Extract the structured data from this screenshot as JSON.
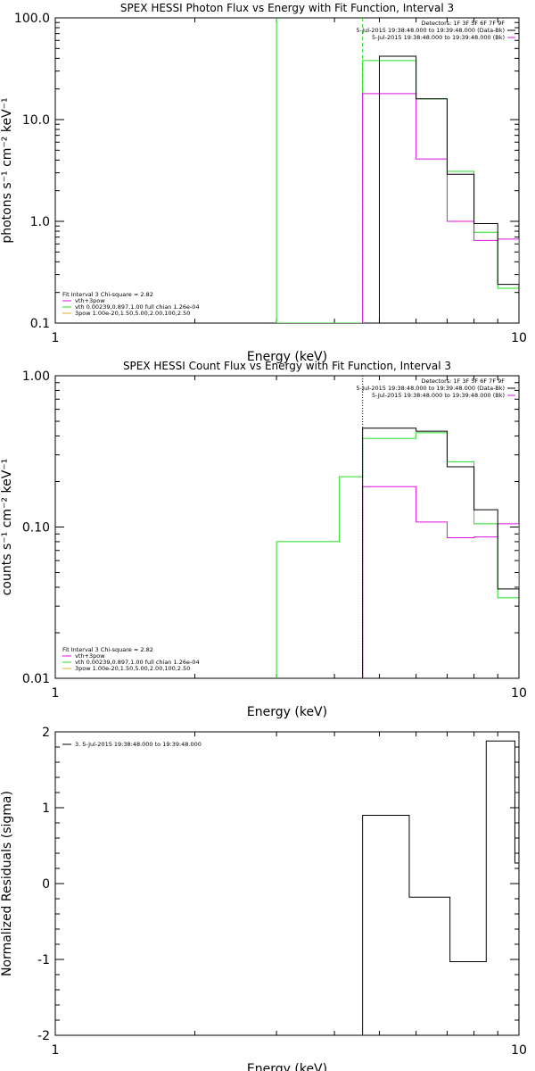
{
  "colors": {
    "black": "#000000",
    "magenta": "#e010e0",
    "green": "#22dd22",
    "orange": "#d8b020"
  },
  "chart_data": [
    {
      "type": "line",
      "title": "SPEX HESSI Photon Flux vs Energy with Fit Function, Interval 3",
      "xlabel": "Energy (keV)",
      "ylabel": "photons s⁻¹ cm⁻² keV⁻¹",
      "xscale": "log",
      "yscale": "log",
      "xlim": [
        1,
        10
      ],
      "ylim": [
        0.1,
        100
      ],
      "xticks": [
        {
          "v": 1,
          "label": "1"
        },
        {
          "v": 10,
          "label": "10"
        }
      ],
      "yticks": [
        {
          "v": 0.1,
          "label": "0.1"
        },
        {
          "v": 1,
          "label": "1.0"
        },
        {
          "v": 10,
          "label": "10.0"
        },
        {
          "v": 100,
          "label": "100.0"
        }
      ],
      "header": [
        "Detectors: 1F 3F 5F 6F 7F 9F",
        "5-Jul-2015 19:38:48.000 to 19:39:48.000 (Data-Bk)",
        "5-Jul-2015 19:38:48.000 to 19:39:48.000 (Bk)"
      ],
      "header_colors": [
        "",
        "#000000",
        "#e010e0"
      ],
      "legend_title": "Fit Interval 3   Chi-square = 2.82",
      "legend": [
        {
          "text": "vth+3pow",
          "color": "#e010e0"
        },
        {
          "text": "vth 0.00239,0.897,1.00   full chian 1.26e-04",
          "color": "#22dd22"
        },
        {
          "text": "3pow 1.00e-20,1.50,5.00,2.00,100,2.50",
          "color": "#d8b020"
        }
      ],
      "vlines": [
        {
          "x": 3.0,
          "color": "#22dd22",
          "style": "solid"
        },
        {
          "x": 4.6,
          "color": "#22dd22",
          "style": "dashed"
        }
      ],
      "series": [
        {
          "color": "#000000",
          "edges": [
            5,
            6,
            7,
            8,
            9,
            10
          ],
          "values": [
            42,
            16,
            2.9,
            0.95,
            0.24
          ]
        },
        {
          "color": "#e010e0",
          "edges": [
            4.6,
            5,
            6,
            7,
            8,
            9,
            10
          ],
          "values": [
            18,
            18,
            4.1,
            1.0,
            0.65,
            0.67
          ]
        },
        {
          "color": "#22dd22",
          "edges": [
            3,
            4,
            4.6,
            5,
            6,
            7,
            8,
            9,
            10
          ],
          "values": [
            0.1,
            0.1,
            38,
            38,
            16,
            3.1,
            0.78,
            0.22
          ]
        }
      ]
    },
    {
      "type": "line",
      "title": "SPEX HESSI Count Flux vs Energy with Fit Function, Interval 3",
      "xlabel": "Energy (keV)",
      "ylabel": "counts s⁻¹ cm⁻² keV⁻¹",
      "xscale": "log",
      "yscale": "log",
      "xlim": [
        1,
        10
      ],
      "ylim": [
        0.01,
        1
      ],
      "xticks": [
        {
          "v": 1,
          "label": "1"
        },
        {
          "v": 10,
          "label": "10"
        }
      ],
      "yticks": [
        {
          "v": 0.01,
          "label": "0.01"
        },
        {
          "v": 0.1,
          "label": "0.10"
        },
        {
          "v": 1,
          "label": "1.00"
        }
      ],
      "header": [
        "Detectors: 1F 3F 5F 6F 7F 9F",
        "5-Jul-2015 19:38:48.000 to 19:39:48.000 (Data-Bk)",
        "5-Jul-2015 19:38:48.000 to 19:39:48.000 (Bk)"
      ],
      "header_colors": [
        "",
        "#000000",
        "#e010e0"
      ],
      "legend_title": "Fit Interval 3   Chi-square = 2.82",
      "legend": [
        {
          "text": "vth+3pow",
          "color": "#e010e0"
        },
        {
          "text": "vth 0.00239,0.897,1.00   full chian 1.26e-04",
          "color": "#22dd22"
        },
        {
          "text": "3pow 1.00e-20,1.50,5.00,2.00,100,2.50",
          "color": "#d8b020"
        }
      ],
      "vlines": [
        {
          "x": 4.6,
          "color": "#000000",
          "style": "dotted"
        }
      ],
      "series": [
        {
          "color": "#000000",
          "edges": [
            4.6,
            5,
            6,
            7,
            8,
            9,
            10
          ],
          "values": [
            0.45,
            0.45,
            0.43,
            0.25,
            0.13,
            0.039
          ]
        },
        {
          "color": "#e010e0",
          "edges": [
            4.6,
            5,
            6,
            7,
            8,
            9,
            10
          ],
          "values": [
            0.185,
            0.185,
            0.108,
            0.085,
            0.086,
            0.105
          ]
        },
        {
          "color": "#22dd22",
          "edges": [
            3,
            3.6,
            4.1,
            4.6,
            5,
            6,
            7,
            8,
            9,
            10
          ],
          "values": [
            0.08,
            0.08,
            0.215,
            0.385,
            0.385,
            0.42,
            0.27,
            0.105,
            0.034
          ]
        }
      ]
    },
    {
      "type": "line",
      "title": "",
      "xlabel": "Energy (keV)",
      "ylabel": "Normalized Residuals (sigma)",
      "xscale": "log",
      "yscale": "linear",
      "xlim": [
        1,
        10
      ],
      "ylim": [
        -2,
        2
      ],
      "xticks": [
        {
          "v": 1,
          "label": "1"
        },
        {
          "v": 10,
          "label": "10"
        }
      ],
      "yticks": [
        {
          "v": -2,
          "label": "-2"
        },
        {
          "v": -1,
          "label": "-1"
        },
        {
          "v": 0,
          "label": "0"
        },
        {
          "v": 1,
          "label": "1"
        },
        {
          "v": 2,
          "label": "2"
        }
      ],
      "header": [],
      "header_colors": [],
      "legend_title": "",
      "legend": [
        {
          "text": "3.  5-Jul-2015 19:38:48.000 to 19:39:48.000",
          "color": "#000000"
        }
      ],
      "vlines": [],
      "series": [
        {
          "color": "#000000",
          "edges": [
            4.6,
            5.8,
            7.1,
            8.5,
            9.8,
            10
          ],
          "values": [
            0.9,
            -0.18,
            -1.03,
            1.88,
            0.27
          ]
        }
      ]
    }
  ]
}
